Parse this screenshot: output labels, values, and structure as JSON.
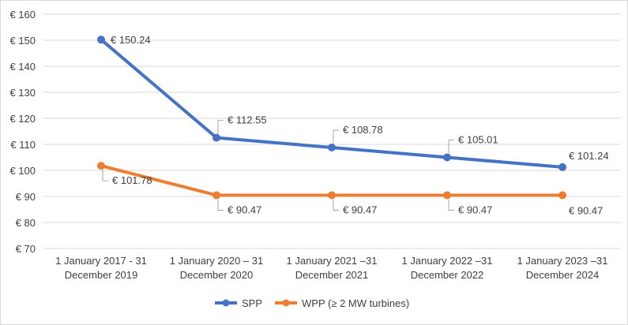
{
  "chart_data": {
    "type": "line",
    "title": "",
    "xlabel": "",
    "ylabel": "",
    "ylim": [
      70,
      160
    ],
    "y_ticks": [
      "€ 70",
      "€ 80",
      "€ 90",
      "€ 100",
      "€ 110",
      "€ 120",
      "€ 130",
      "€ 140",
      "€ 150",
      "€ 160"
    ],
    "y_tick_values": [
      70,
      80,
      90,
      100,
      110,
      120,
      130,
      140,
      150,
      160
    ],
    "grid": true,
    "legend_position": "bottom",
    "categories": [
      [
        "1 January 2017 - 31",
        "December 2019"
      ],
      [
        "1 January 2020 – 31",
        "December 2020"
      ],
      [
        "1 January 2021 –31",
        "December 2021"
      ],
      [
        "1 January 2022 –31",
        "December 2022"
      ],
      [
        "1 January 2023 –31",
        "December 2024"
      ]
    ],
    "series": [
      {
        "name": "SPP",
        "color": "#4472c4",
        "values": [
          150.24,
          112.55,
          108.78,
          105.01,
          101.24
        ],
        "labels": [
          "€ 150.24",
          "€ 112.55",
          "€ 108.78",
          "€ 105.01",
          "€ 101.24"
        ]
      },
      {
        "name": "WPP (≥ 2 MW turbines)",
        "color": "#ed7d31",
        "values": [
          101.78,
          90.47,
          90.47,
          90.47,
          90.47
        ],
        "labels": [
          "€ 101.78",
          "€ 90.47",
          "€ 90.47",
          "€ 90.47",
          "€ 90.47"
        ]
      }
    ]
  }
}
